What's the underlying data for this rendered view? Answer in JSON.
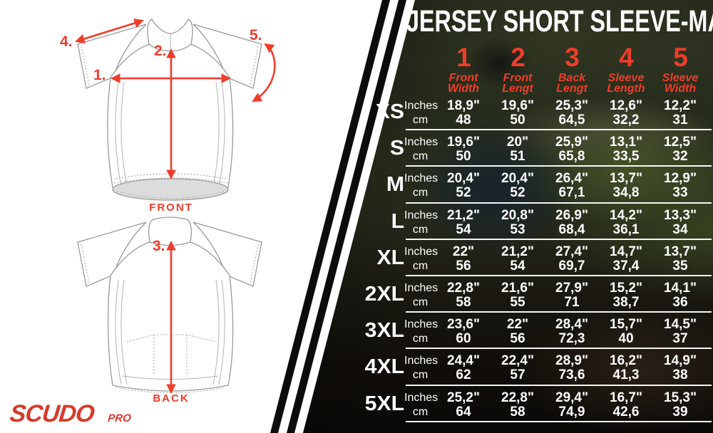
{
  "title": "JERSEY SHORT SLEEVE-MAN",
  "brand": {
    "logo_main": "SCUDO",
    "logo_sub": "PRO"
  },
  "diagram": {
    "front_label": "FRONT",
    "back_label": "BACK",
    "markers": {
      "m1": "1.",
      "m2": "2.",
      "m3": "3.",
      "m4": "4.",
      "m5": "5."
    }
  },
  "table": {
    "unit_labels": {
      "inches": "Inches",
      "cm": "cm"
    },
    "columns": [
      {
        "num": "1",
        "label_lines": [
          "Front",
          "Width"
        ]
      },
      {
        "num": "2",
        "label_lines": [
          "Front",
          "Lengt"
        ]
      },
      {
        "num": "3",
        "label_lines": [
          "Back",
          "Lengt"
        ]
      },
      {
        "num": "4",
        "label_lines": [
          "Sleeve",
          "Length"
        ]
      },
      {
        "num": "5",
        "label_lines": [
          "Sleeve",
          "Width"
        ]
      }
    ],
    "sizes": [
      {
        "size": "XS",
        "inches": [
          "18,9\"",
          "19,6\"",
          "25,3\"",
          "12,6\"",
          "12,2\""
        ],
        "cm": [
          "48",
          "50",
          "64,5",
          "32,2",
          "31"
        ]
      },
      {
        "size": "S",
        "inches": [
          "19,6\"",
          "20\"",
          "25,9\"",
          "13,1\"",
          "12,5\""
        ],
        "cm": [
          "50",
          "51",
          "65,8",
          "33,5",
          "32"
        ]
      },
      {
        "size": "M",
        "inches": [
          "20,4\"",
          "20,4\"",
          "26,4\"",
          "13,7\"",
          "12,9\""
        ],
        "cm": [
          "52",
          "52",
          "67,1",
          "34,8",
          "33"
        ]
      },
      {
        "size": "L",
        "inches": [
          "21,2\"",
          "20,8\"",
          "26,9\"",
          "14,2\"",
          "13,3\""
        ],
        "cm": [
          "54",
          "53",
          "68,4",
          "36,1",
          "34"
        ]
      },
      {
        "size": "XL",
        "inches": [
          "22\"",
          "21,2\"",
          "27,4\"",
          "14,7\"",
          "13,7\""
        ],
        "cm": [
          "56",
          "54",
          "69,7",
          "37,4",
          "35"
        ]
      },
      {
        "size": "2XL",
        "inches": [
          "22,8\"",
          "21,6\"",
          "27,9\"",
          "15,2\"",
          "14,1\""
        ],
        "cm": [
          "58",
          "55",
          "71",
          "38,7",
          "36"
        ]
      },
      {
        "size": "3XL",
        "inches": [
          "23,6\"",
          "22\"",
          "28,4\"",
          "15,7\"",
          "14,5\""
        ],
        "cm": [
          "60",
          "56",
          "72,3",
          "40",
          "37"
        ]
      },
      {
        "size": "4XL",
        "inches": [
          "24,4\"",
          "22,4\"",
          "28,9\"",
          "16,2\"",
          "14,9\""
        ],
        "cm": [
          "62",
          "57",
          "73,6",
          "41,3",
          "38"
        ]
      },
      {
        "size": "5XL",
        "inches": [
          "25,2\"",
          "22,8\"",
          "29,4\"",
          "16,7\"",
          "15,3\""
        ],
        "cm": [
          "64",
          "58",
          "74,9",
          "42,6",
          "39"
        ]
      }
    ]
  },
  "colors": {
    "accent": "#ee3d2c",
    "logo_red": "#d63b2b",
    "table_text": "#ffffff",
    "panel_dark": "#1e2215"
  }
}
